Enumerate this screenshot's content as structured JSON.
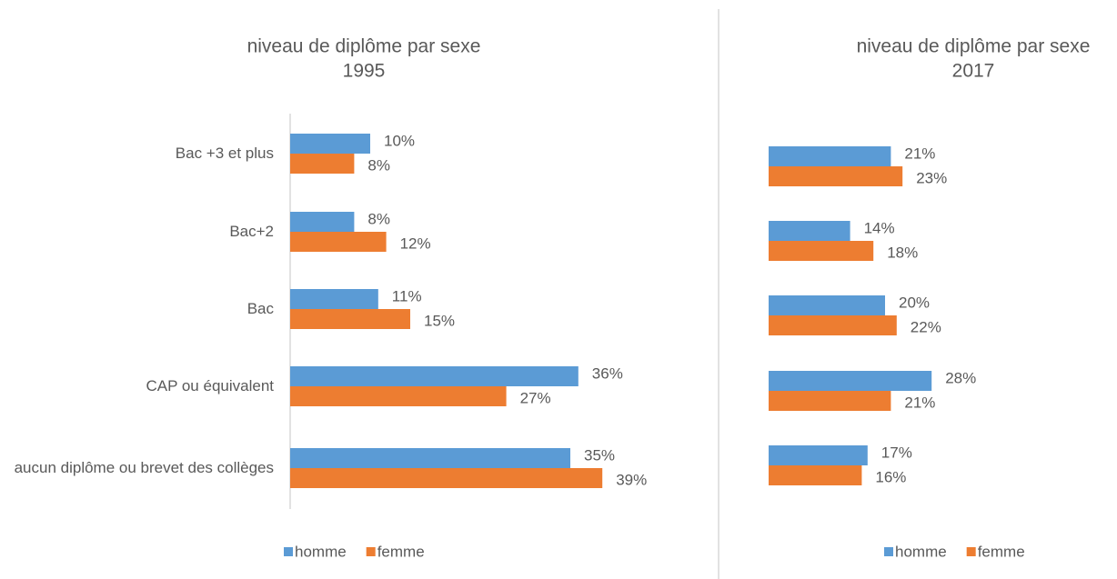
{
  "chart_data": [
    {
      "type": "hbar",
      "title": "niveau de diplôme par sexe",
      "subtitle": "1995",
      "categories": [
        "Bac +3 et plus",
        "Bac+2",
        "Bac",
        "CAP ou équivalent",
        "aucun diplôme ou brevet des collèges"
      ],
      "series": [
        {
          "name": "homme",
          "color": "#5b9bd5",
          "values": [
            10,
            8,
            11,
            36,
            35
          ],
          "value_labels": [
            "10%",
            "8%",
            "11%",
            "36%",
            "35%"
          ]
        },
        {
          "name": "femme",
          "color": "#ed7d31",
          "values": [
            8,
            12,
            15,
            27,
            39
          ],
          "value_labels": [
            "8%",
            "12%",
            "15%",
            "27%",
            "39%"
          ]
        }
      ]
    },
    {
      "type": "hbar",
      "title": "niveau de diplôme par sexe",
      "subtitle": "2017",
      "categories": [
        null,
        null,
        null,
        null,
        null
      ],
      "series": [
        {
          "name": "homme",
          "color": "#5b9bd5",
          "values": [
            21,
            14,
            20,
            28,
            17
          ],
          "value_labels": [
            "21%",
            "14%",
            "20%",
            "28%",
            "17%"
          ]
        },
        {
          "name": "femme",
          "color": "#ed7d31",
          "values": [
            23,
            18,
            22,
            21,
            16
          ],
          "value_labels": [
            "23%",
            "18%",
            "22%",
            "21%",
            "16%"
          ]
        }
      ]
    }
  ]
}
